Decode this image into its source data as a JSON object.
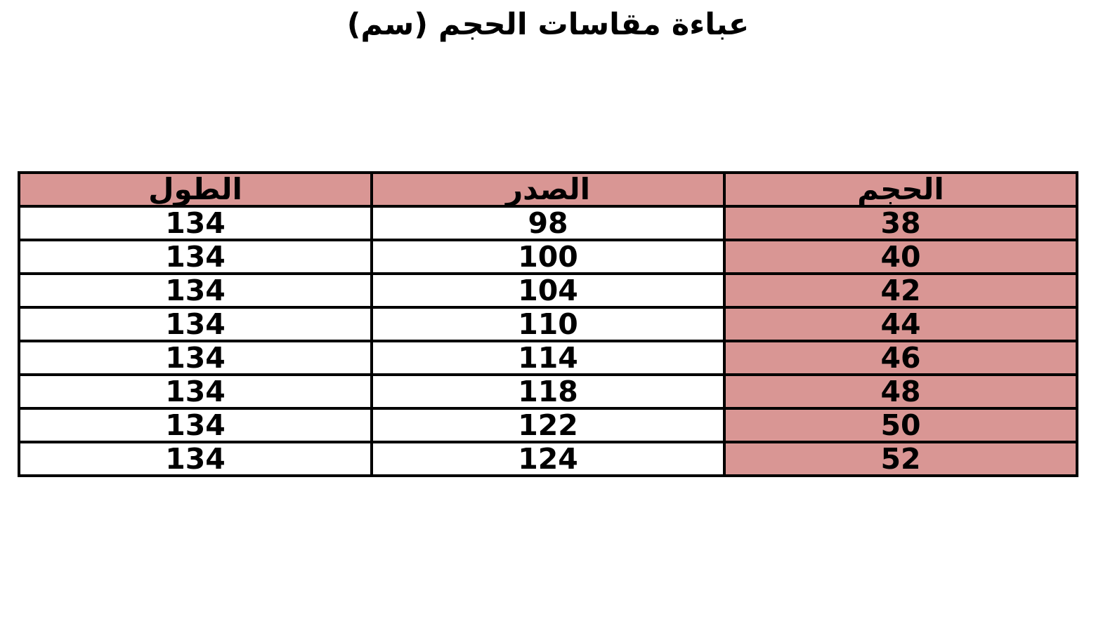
{
  "title": "عباءة مقاسات الحجم (سم)",
  "colors": {
    "accent_pink": "#d99694",
    "border": "#000000",
    "row_bg": "#ffffff",
    "text": "#000000"
  },
  "table": {
    "columns": [
      {
        "key": "size",
        "label": "الحجم"
      },
      {
        "key": "chest",
        "label": "الصدر"
      },
      {
        "key": "length",
        "label": "الطول"
      }
    ],
    "highlight_column_key": "size",
    "rows": [
      {
        "size": "38",
        "chest": "98",
        "length": "134"
      },
      {
        "size": "40",
        "chest": "100",
        "length": "134"
      },
      {
        "size": "42",
        "chest": "104",
        "length": "134"
      },
      {
        "size": "44",
        "chest": "110",
        "length": "134"
      },
      {
        "size": "46",
        "chest": "114",
        "length": "134"
      },
      {
        "size": "48",
        "chest": "118",
        "length": "134"
      },
      {
        "size": "50",
        "chest": "122",
        "length": "134"
      },
      {
        "size": "52",
        "chest": "124",
        "length": "134"
      }
    ]
  },
  "chart_data": {
    "type": "table",
    "title": "عباءة مقاسات الحجم (سم)",
    "direction": "rtl",
    "columns": [
      "الحجم",
      "الصدر",
      "الطول"
    ],
    "rows": [
      [
        38,
        98,
        134
      ],
      [
        40,
        100,
        134
      ],
      [
        42,
        104,
        134
      ],
      [
        44,
        110,
        134
      ],
      [
        46,
        114,
        134
      ],
      [
        48,
        118,
        134
      ],
      [
        50,
        122,
        134
      ],
      [
        52,
        124,
        134
      ]
    ],
    "layout": {
      "header_background": "#d99694",
      "highlighted_column": "الحجم",
      "highlighted_column_background": "#d99694",
      "grid": true,
      "border_color": "#000000"
    }
  }
}
